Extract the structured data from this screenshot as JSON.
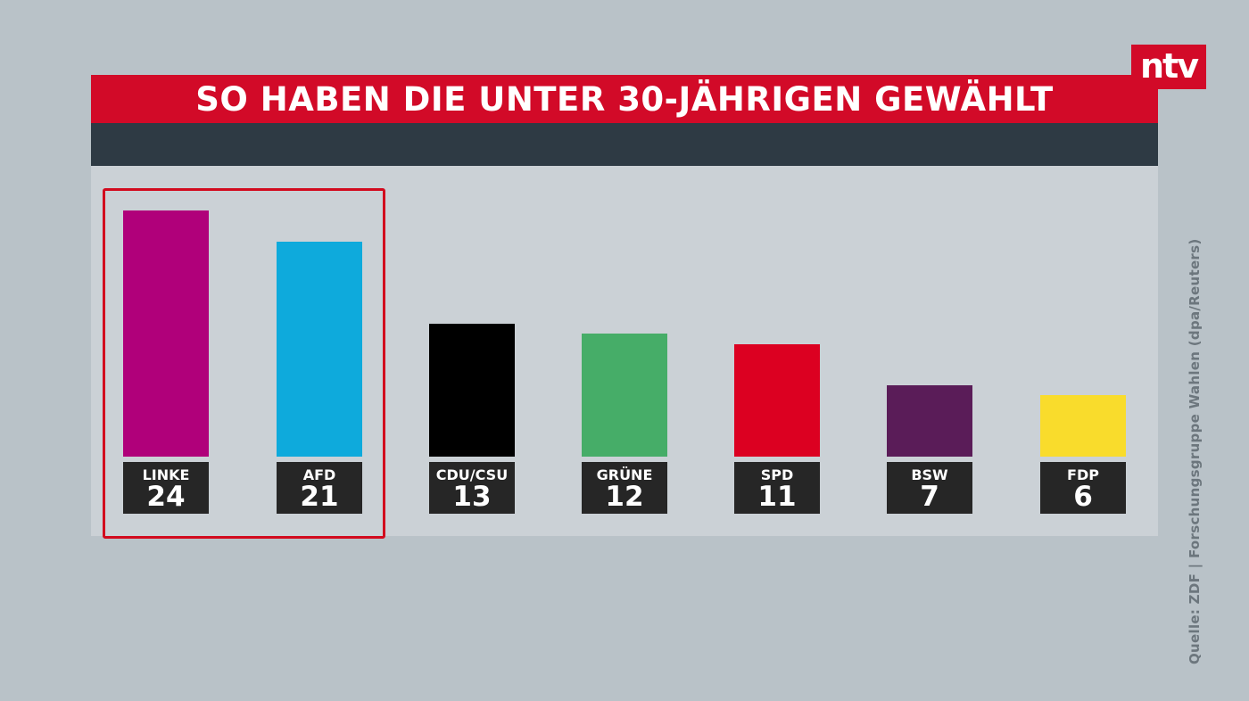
{
  "logo": "ntv",
  "chart_data": {
    "type": "bar",
    "title": "SO HABEN DIE UNTER 30-JÄHRIGEN GEWÄHLT",
    "categories": [
      "LINKE",
      "AFD",
      "CDU/CSU",
      "GRÜNE",
      "SPD",
      "BSW",
      "FDP"
    ],
    "values": [
      24,
      21,
      13,
      12,
      11,
      7,
      6
    ],
    "colors": [
      "#b0007a",
      "#0eaadc",
      "#000000",
      "#46ad68",
      "#dc0021",
      "#5a1c58",
      "#f9dc2c"
    ],
    "highlighted": [
      "LINKE",
      "AFD"
    ],
    "xlabel": "",
    "ylabel": "",
    "ylim": [
      0,
      24
    ],
    "grid": false
  },
  "source": "Quelle: ZDF | Forschungsgruppe Wahlen (dpa/Reuters)"
}
